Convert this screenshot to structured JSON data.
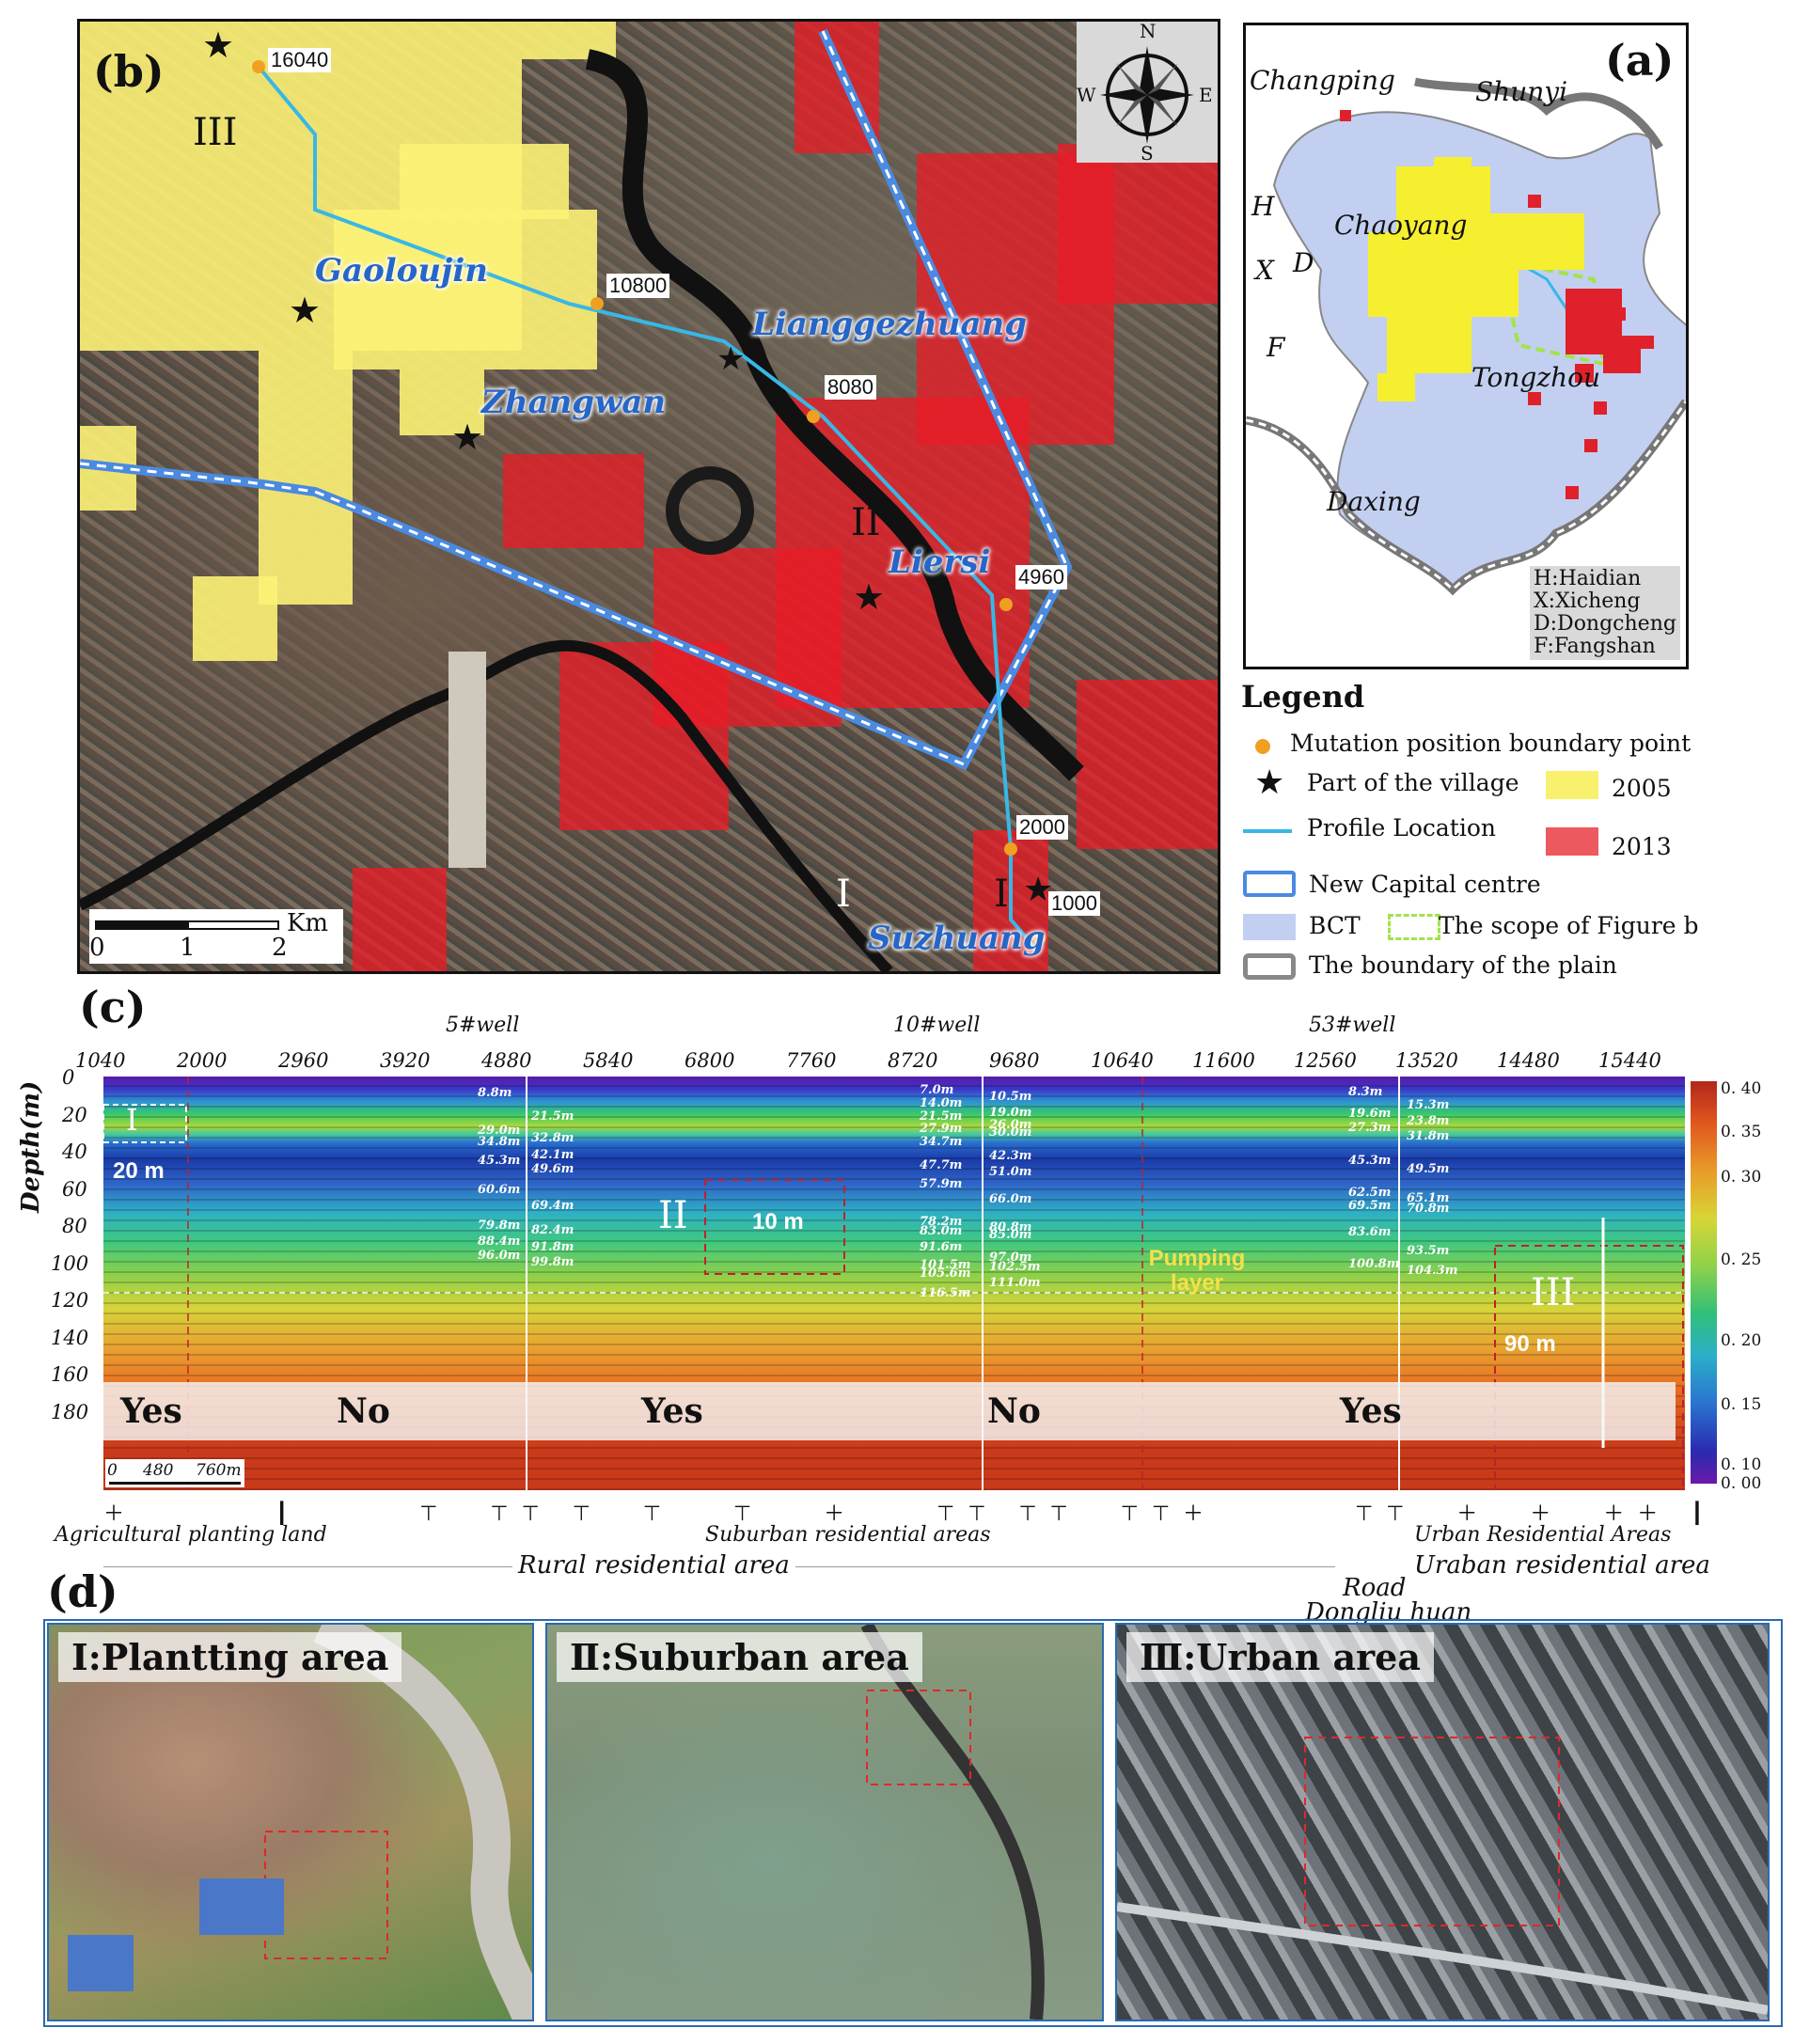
{
  "panels": {
    "a": "(a)",
    "b": "(b)",
    "c": "(c)",
    "d": "(d)"
  },
  "map_b": {
    "zones": [
      "III",
      "II",
      "I",
      "I"
    ],
    "places": [
      "Gaoloujin",
      "Lianggezhuang",
      "Zhangwan",
      "Liersi",
      "Suzhuang"
    ],
    "boundary_points": [
      "16040",
      "10800",
      "8080",
      "4960",
      "2000",
      "1000"
    ],
    "compass": {
      "n": "N",
      "s": "S",
      "e": "E",
      "w": "W"
    },
    "scale": {
      "unit": "Km",
      "ticks": [
        "0",
        "1",
        "2"
      ]
    }
  },
  "map_a": {
    "districts": [
      "Changping",
      "Shunyi",
      "Chaoyang",
      "Tongzhou",
      "Daxing",
      "H",
      "X",
      "D",
      "F"
    ],
    "abbreviations": [
      "H:Haidian",
      "X:Xicheng",
      "D:Dongcheng",
      "F:Fangshan"
    ]
  },
  "legend": {
    "title": "Legend",
    "items": [
      "Mutation position boundary point",
      "Part of the village",
      "Profile Location",
      "New Capital centre",
      "BCT",
      "The scope of Figure b",
      "The boundary of the plain"
    ],
    "years": [
      "2005",
      "2013"
    ],
    "colors": {
      "2005": "#f9f06e",
      "2013": "#ec5a5f",
      "profile": "#39b7e6",
      "bct": "#c2cff0",
      "boundary_point": "#f0a020"
    }
  },
  "profile": {
    "wells": [
      "5#well",
      "10#well",
      "53#well"
    ],
    "x_ticks": [
      "1040",
      "2000",
      "2960",
      "3920",
      "4880",
      "5840",
      "6800",
      "7760",
      "8720",
      "9680",
      "10640",
      "11600",
      "12560",
      "13520",
      "14480",
      "15440"
    ],
    "y_label": "Depth(m)",
    "y_ticks": [
      "0",
      "20",
      "40",
      "60",
      "80",
      "100",
      "120",
      "140",
      "160",
      "180"
    ],
    "colorbar": [
      "0. 40",
      "0. 35",
      "0. 30",
      "0. 25",
      "0. 20",
      "0. 15",
      "0. 10",
      "0. 00"
    ],
    "yes_no": [
      "Yes",
      "No",
      "Yes",
      "No",
      "Yes"
    ],
    "zone_labels": [
      "I",
      "II",
      "III"
    ],
    "dims": [
      "20 m",
      "10 m",
      "90 m"
    ],
    "pumping": "Pumping layer",
    "scale": {
      "ticks": [
        "0",
        "480"
      ],
      "end": "760m"
    },
    "well5_left": [
      "8.8m",
      "29.0m",
      "34.8m",
      "45.3m",
      "60.6m",
      "79.8m",
      "88.4m",
      "96.0m"
    ],
    "well5_right": [
      "21.5m",
      "32.8m",
      "42.1m",
      "49.6m",
      "69.4m",
      "82.4m",
      "91.8m",
      "99.8m"
    ],
    "well10_left": [
      "7.0m",
      "14.0m",
      "21.5m",
      "27.9m",
      "34.7m",
      "47.7m",
      "57.9m",
      "78.2m",
      "83.0m",
      "91.6m",
      "101.5m",
      "105.6m",
      "116.5m"
    ],
    "well10_right": [
      "10.5m",
      "19.0m",
      "26.0m",
      "30.0m",
      "42.3m",
      "51.0m",
      "66.0m",
      "80.8m",
      "85.0m",
      "97.0m",
      "102.5m",
      "111.0m"
    ],
    "well53_left": [
      "8.3m",
      "19.6m",
      "27.3m",
      "45.3m",
      "62.5m",
      "69.5m",
      "83.6m",
      "100.8m"
    ],
    "well53_right": [
      "15.3m",
      "23.8m",
      "31.8m",
      "49.5m",
      "65.1m",
      "70.8m",
      "93.5m",
      "104.3m"
    ],
    "land_use": [
      "Agricultural planting land",
      "Suburban residential areas",
      "Urban Residential Areas",
      "Rural residential area",
      "Uraban residential area",
      "Road",
      "Dongliu huan"
    ]
  },
  "photos": [
    "Ⅰ:Plantting area",
    "Ⅱ:Suburban area",
    "Ⅲ:Urban area"
  ]
}
